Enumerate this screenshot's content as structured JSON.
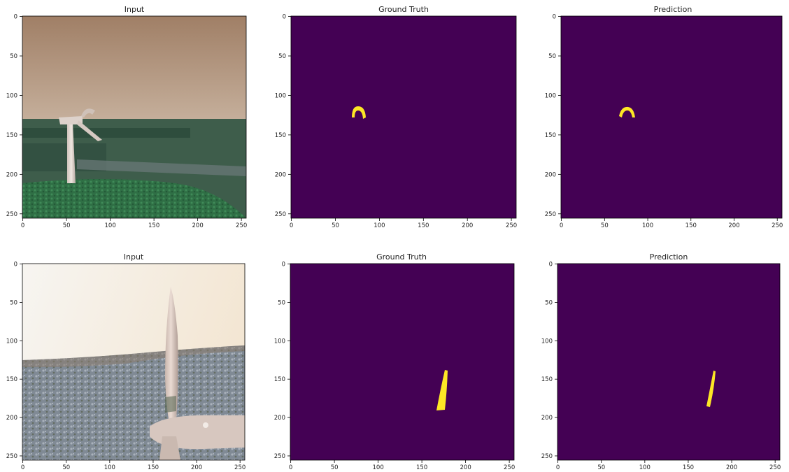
{
  "figure": {
    "axis_ticks": [
      "0",
      "50",
      "100",
      "150",
      "200",
      "250"
    ],
    "colors": {
      "mask_background": "#440154",
      "mask_foreground": "#fde725",
      "frame": "#000000"
    },
    "rows": [
      {
        "input": {
          "title": "Input",
          "image_description": "wind turbine on green hill under a tan sky",
          "sky_top": "#a07f66",
          "sky_bottom": "#e8dccd",
          "ground": "#3e5d4b",
          "grass": "#2f7a46"
        },
        "ground_truth": {
          "title": "Ground Truth"
        },
        "prediction": {
          "title": "Prediction"
        }
      },
      {
        "input": {
          "title": "Input",
          "image_description": "close-up wind turbine blade over rocky hillside",
          "sky_top": "#f3e6d3",
          "sky_bottom": "#f7f5f1",
          "ground": "#7f8792",
          "grass": "#5c6b57"
        },
        "ground_truth": {
          "title": "Ground Truth"
        },
        "prediction": {
          "title": "Prediction"
        }
      }
    ]
  }
}
